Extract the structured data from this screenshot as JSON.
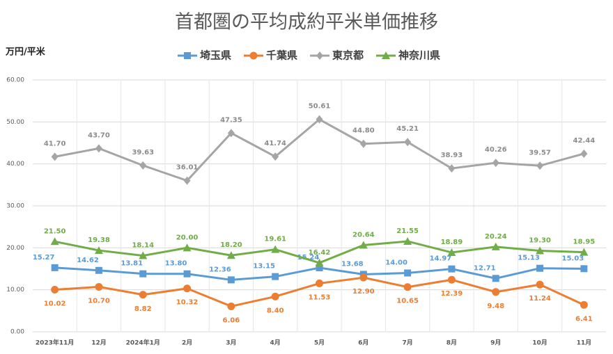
{
  "chart_data": {
    "type": "line",
    "title": "首都圏の平均成約平米単価推移",
    "y_label": "万円/平米",
    "categories": [
      "2023年11月",
      "12月",
      "2024年1月",
      "2月",
      "3月",
      "4月",
      "5月",
      "6月",
      "7月",
      "8月",
      "9月",
      "10月",
      "11月"
    ],
    "series": [
      {
        "name": "埼玉県",
        "color": "#5b9bd5",
        "marker": "square",
        "values": [
          15.27,
          14.62,
          13.81,
          13.8,
          12.36,
          13.15,
          15.24,
          13.68,
          14.0,
          14.97,
          12.71,
          15.13,
          15.03
        ],
        "value_labels": [
          "15.27",
          "14.62",
          "13.81",
          "13.80",
          "12.36",
          "13.15",
          "15.24",
          "13.68",
          "14.00",
          "14.97",
          "12.71",
          "15.13",
          "15.03"
        ]
      },
      {
        "name": "千葉県",
        "color": "#ed7d31",
        "marker": "circle",
        "values": [
          10.02,
          10.7,
          8.82,
          10.32,
          6.06,
          8.4,
          11.53,
          12.9,
          10.65,
          12.39,
          9.48,
          11.24,
          6.41
        ],
        "value_labels": [
          "10.02",
          "10.70",
          "8.82",
          "10.32",
          "6.06",
          "8.40",
          "11.53",
          "12.90",
          "10.65",
          "12.39",
          "9.48",
          "11.24",
          "6.41"
        ]
      },
      {
        "name": "東京都",
        "color": "#a5a5a5",
        "marker": "diamond",
        "values": [
          41.7,
          43.7,
          39.63,
          36.01,
          47.35,
          41.74,
          50.61,
          44.8,
          45.21,
          38.93,
          40.26,
          39.57,
          42.44
        ],
        "value_labels": [
          "41.70",
          "43.70",
          "39.63",
          "36.01",
          "47.35",
          "41.74",
          "50.61",
          "44.80",
          "45.21",
          "38.93",
          "40.26",
          "39.57",
          "42.44"
        ]
      },
      {
        "name": "神奈川県",
        "color": "#70ad47",
        "marker": "triangle",
        "values": [
          21.5,
          19.38,
          18.14,
          20.0,
          18.2,
          19.61,
          16.42,
          20.64,
          21.55,
          18.89,
          20.24,
          19.3,
          18.95
        ],
        "value_labels": [
          "21.50",
          "19.38",
          "18.14",
          "20.00",
          "18.20",
          "19.61",
          "16.42",
          "20.64",
          "21.55",
          "18.89",
          "20.24",
          "19.30",
          "18.95"
        ]
      }
    ],
    "ylim": [
      0,
      60
    ],
    "yticks": [
      {
        "value": 0,
        "label": "0.00"
      },
      {
        "value": 10,
        "label": "10.00"
      },
      {
        "value": 20,
        "label": "20.00"
      },
      {
        "value": 30,
        "label": "30.00"
      },
      {
        "value": 40,
        "label": "40.00"
      },
      {
        "value": 50,
        "label": "50.00"
      },
      {
        "value": 60,
        "label": "60.00"
      }
    ],
    "grid": true,
    "legend": "top"
  }
}
